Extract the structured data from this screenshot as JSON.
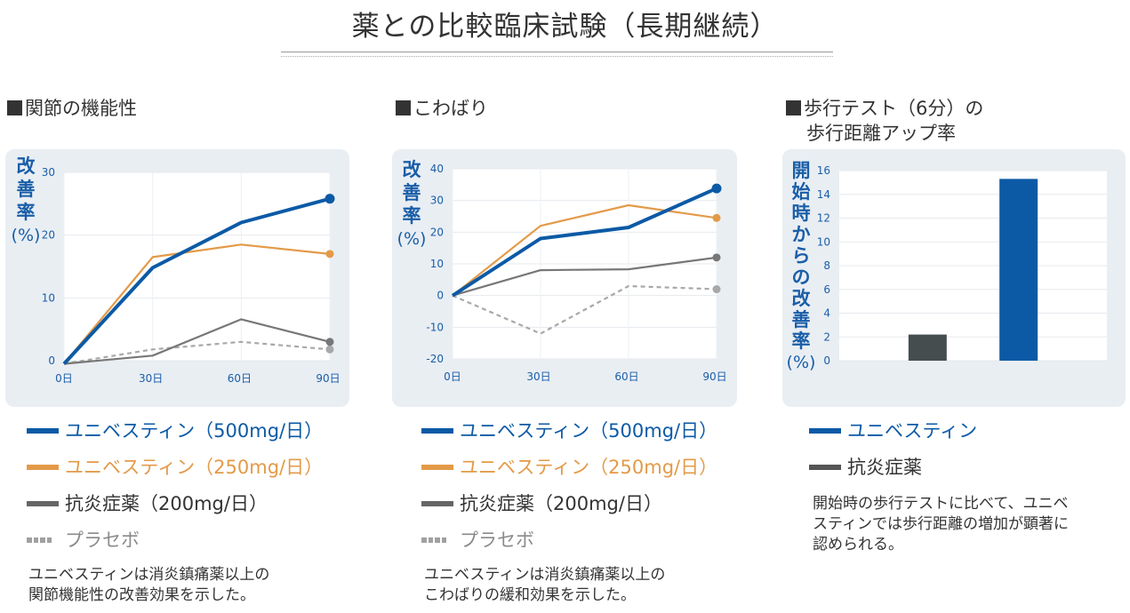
{
  "title": "薬との比較臨床試験（長期継続）",
  "panels": [
    {
      "heading": "関節の機能性",
      "ylabel_chars": [
        "改",
        "善",
        "率"
      ],
      "ylabel_unit": "(%)",
      "legend": [
        {
          "label": "ユニベスティン（500mg/日）",
          "color": "#0c5aa6",
          "style": "solid-thick"
        },
        {
          "label": "ユニベスティン（250mg/日）",
          "color": "#e39a48",
          "style": "solid"
        },
        {
          "label": "抗炎症薬（200mg/日）",
          "color": "#666666",
          "style": "solid"
        },
        {
          "label": "プラセボ",
          "color": "#a0a0a0",
          "style": "dotted"
        }
      ],
      "note_lines": [
        "ユニベスティンは消炎鎮痛薬以上の",
        "関節機能性の改善効果を示した。"
      ]
    },
    {
      "heading": "こわばり",
      "ylabel_chars": [
        "改",
        "善",
        "率"
      ],
      "ylabel_unit": "(%)",
      "legend": [
        {
          "label": "ユニベスティン（500mg/日）",
          "color": "#0c5aa6",
          "style": "solid-thick"
        },
        {
          "label": "ユニベスティン（250mg/日）",
          "color": "#e39a48",
          "style": "solid"
        },
        {
          "label": "抗炎症薬（200mg/日）",
          "color": "#666666",
          "style": "solid"
        },
        {
          "label": "プラセボ",
          "color": "#a0a0a0",
          "style": "dotted"
        }
      ],
      "note_lines": [
        "ユニベスティンは消炎鎮痛薬以上の",
        "こわばりの緩和効果を示した。"
      ]
    },
    {
      "heading_lines": [
        "歩行テスト（6分）の",
        "歩行距離アップ率"
      ],
      "ylabel_chars": [
        "開",
        "始",
        "時",
        "か",
        "ら",
        "の",
        "改",
        "善",
        "率"
      ],
      "ylabel_unit": "(%)",
      "legend": [
        {
          "label": "ユニベスティン",
          "color": "#0c5aa6",
          "style": "solid-thick"
        },
        {
          "label": "抗炎症薬",
          "color": "#555555",
          "style": "solid-thick"
        }
      ],
      "note_lines": [
        "開始時の歩行テストに比べて、ユニベ",
        "スティンでは歩行距離の増加が顕著に",
        "認められる。"
      ]
    }
  ],
  "chart_data": [
    {
      "type": "line",
      "x": [
        "0日",
        "30日",
        "60日",
        "90日"
      ],
      "ylim": [
        0,
        30
      ],
      "yticks": [
        "0",
        "10",
        "20",
        "30"
      ],
      "ylabel": "改善率(%)",
      "series": [
        {
          "name": "ユニベスティン（500mg/日）",
          "values": [
            -0.5,
            14.8,
            22.0,
            25.8
          ],
          "color": "#0c5aa6",
          "style": "thick"
        },
        {
          "name": "ユニベスティン（250mg/日）",
          "values": [
            -0.5,
            16.5,
            18.5,
            17.0
          ],
          "color": "#e39a48",
          "style": "solid"
        },
        {
          "name": "抗炎症薬（200mg/日）",
          "values": [
            -0.5,
            0.8,
            6.6,
            3.0
          ],
          "color": "#777777",
          "style": "solid"
        },
        {
          "name": "プラセボ",
          "values": [
            -0.5,
            1.8,
            3.0,
            1.8
          ],
          "color": "#a8a8a8",
          "style": "dashed"
        }
      ],
      "grid": true
    },
    {
      "type": "line",
      "x": [
        "0日",
        "30日",
        "60日",
        "90日"
      ],
      "ylim": [
        -20,
        40
      ],
      "yticks": [
        "-20",
        "-10",
        "0",
        "10",
        "20",
        "30",
        "40"
      ],
      "ylabel": "改善率(%)",
      "series": [
        {
          "name": "ユニベスティン（500mg/日）",
          "values": [
            0,
            18.0,
            21.5,
            33.8
          ],
          "color": "#0c5aa6",
          "style": "thick"
        },
        {
          "name": "ユニベスティン（250mg/日）",
          "values": [
            0,
            22.0,
            28.5,
            24.5
          ],
          "color": "#e39a48",
          "style": "solid"
        },
        {
          "name": "抗炎症薬（200mg/日）",
          "values": [
            0,
            8.0,
            8.3,
            12.0
          ],
          "color": "#777777",
          "style": "solid"
        },
        {
          "name": "プラセボ",
          "values": [
            0,
            -12.0,
            3.0,
            2.0
          ],
          "color": "#a8a8a8",
          "style": "dashed"
        }
      ],
      "grid": true
    },
    {
      "type": "bar",
      "categories": [
        "抗炎症薬",
        "ユニベスティン"
      ],
      "values": [
        2.2,
        15.3
      ],
      "colors": [
        "#454d4f",
        "#0c5aa6"
      ],
      "ylim": [
        0,
        16
      ],
      "yticks": [
        "0",
        "2",
        "4",
        "6",
        "8",
        "10",
        "12",
        "14",
        "16"
      ],
      "ylabel": "開始時からの改善率(%)",
      "grid": true
    }
  ]
}
